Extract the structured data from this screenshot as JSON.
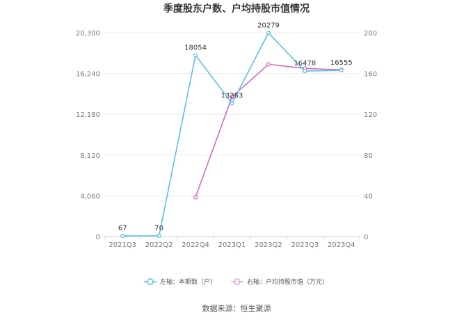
{
  "chart_data": {
    "type": "line",
    "title": "季度股东户数、户均持股市值情况",
    "categories": [
      "2021Q3",
      "2022Q2",
      "2022Q4",
      "2023Q1",
      "2023Q2",
      "2023Q3",
      "2023Q4"
    ],
    "left_axis": {
      "ticks": [
        "0",
        "4,060",
        "8,120",
        "12,180",
        "16,240",
        "20,300"
      ],
      "ylim": [
        0,
        20300
      ]
    },
    "right_axis": {
      "ticks": [
        "0",
        "40",
        "80",
        "120",
        "160",
        "200"
      ],
      "ylim": [
        0,
        200
      ]
    },
    "series": [
      {
        "name": "左轴：本期数（户）",
        "axis": "left",
        "color": "#5bc0eb",
        "values": [
          67,
          70,
          18054,
          13263,
          20279,
          16478,
          16555
        ],
        "labels": [
          "67",
          "70",
          "18054",
          "13263",
          "20279",
          "16478",
          "16555"
        ]
      },
      {
        "name": "右轴：户均持股市值（万元）",
        "axis": "right",
        "color": "#d36bbf",
        "values": [
          null,
          null,
          38.5,
          137,
          169,
          165,
          163.5
        ]
      }
    ],
    "grid": true,
    "legend_position": "bottom"
  },
  "source_text": "数据来源：恒生聚源"
}
